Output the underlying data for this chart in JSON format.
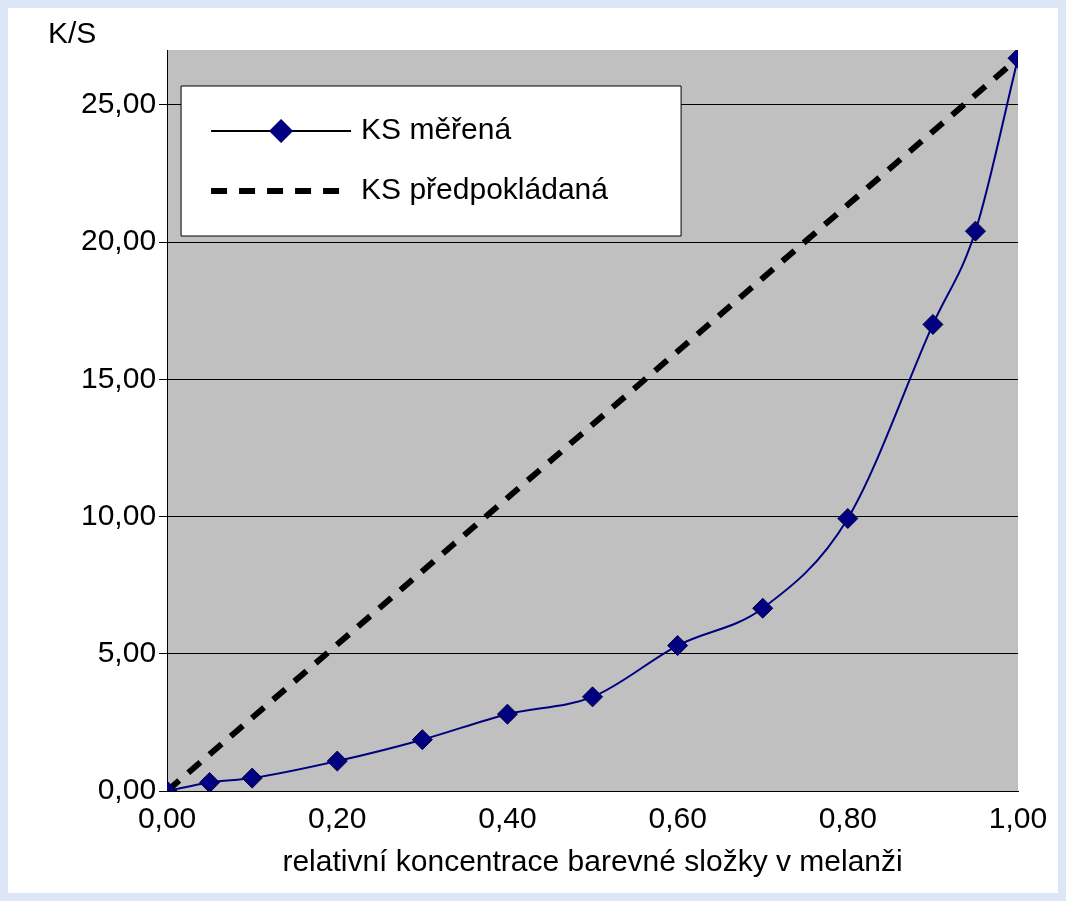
{
  "chart_data": {
    "type": "line",
    "ylabel": "K/S",
    "xlabel": "relativní koncentrace barevné složky v melanži",
    "xlim": [
      0,
      1
    ],
    "ylim": [
      0,
      27
    ],
    "xticks": [
      {
        "value": 0,
        "label": "0,00"
      },
      {
        "value": 0.2,
        "label": "0,20"
      },
      {
        "value": 0.4,
        "label": "0,40"
      },
      {
        "value": 0.6,
        "label": "0,60"
      },
      {
        "value": 0.8,
        "label": "0,80"
      },
      {
        "value": 1,
        "label": "1,00"
      }
    ],
    "yticks": [
      {
        "value": 0,
        "label": "0,00"
      },
      {
        "value": 5,
        "label": "5,00"
      },
      {
        "value": 10,
        "label": "10,00"
      },
      {
        "value": 15,
        "label": "15,00"
      },
      {
        "value": 20,
        "label": "20,00"
      },
      {
        "value": 25,
        "label": "25,00"
      }
    ],
    "grid": "y",
    "legend": "top left",
    "series": [
      {
        "name": "KS měřená",
        "color": "#000080",
        "marker": "diamond",
        "line_style": "solid",
        "x": [
          0,
          0.05,
          0.1,
          0.2,
          0.3,
          0.4,
          0.5,
          0.6,
          0.7,
          0.8,
          0.9,
          0.95,
          1
        ],
        "values": [
          0,
          0.31,
          0.47,
          1.09,
          1.87,
          2.8,
          3.43,
          5.3,
          6.66,
          9.93,
          17.0,
          20.4,
          26.7
        ]
      },
      {
        "name": "KS předpokládaná",
        "color": "#000000",
        "marker": "none",
        "line_style": "dashed",
        "x": [
          0,
          1
        ],
        "values": [
          0,
          26.7
        ]
      }
    ]
  }
}
